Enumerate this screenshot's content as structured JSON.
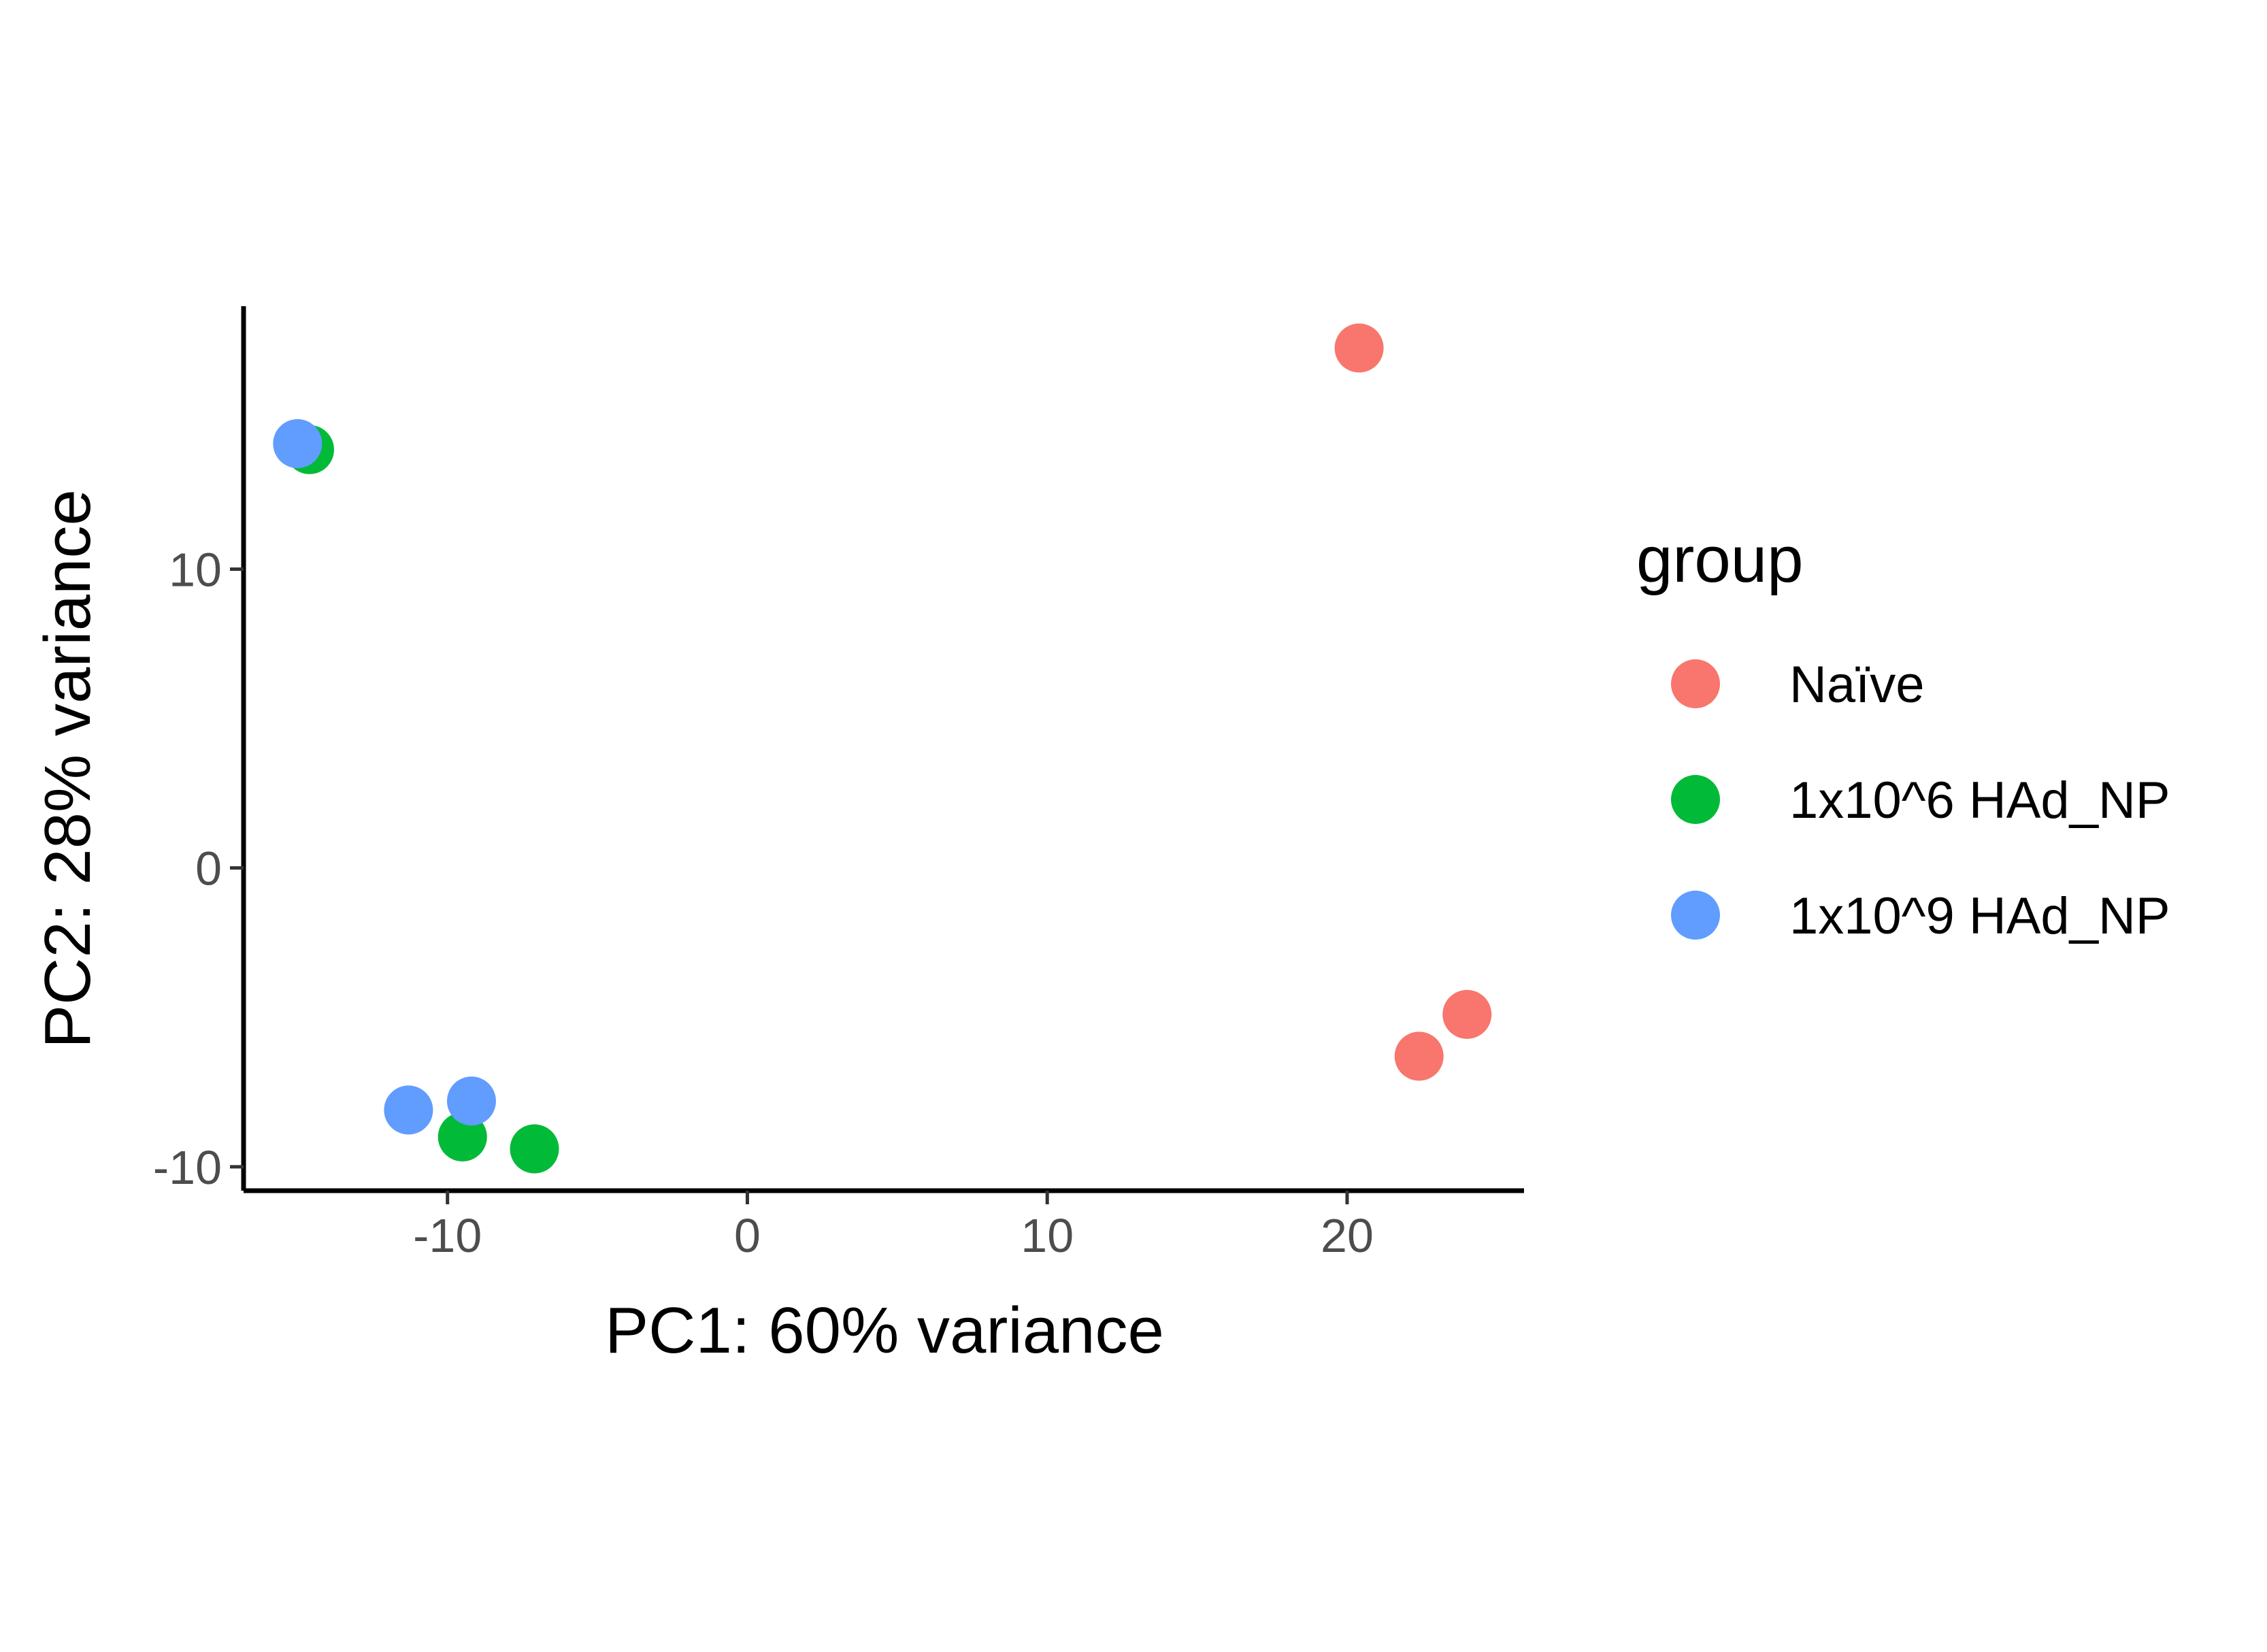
{
  "chart_data": {
    "type": "scatter",
    "xlabel": "PC1: 60% variance",
    "ylabel": "PC2: 28% variance",
    "xlim": [
      -16.8,
      25.9
    ],
    "ylim": [
      -10.8,
      18.8
    ],
    "x_ticks": [
      -10,
      0,
      10,
      20
    ],
    "y_ticks": [
      -10,
      0,
      10
    ],
    "grid": false,
    "legend": {
      "title": "group",
      "placement": "right"
    },
    "series": [
      {
        "name": "Naïve",
        "color": "#F8766D",
        "points": [
          {
            "x": 20.4,
            "y": 17.4
          },
          {
            "x": 24.0,
            "y": -4.9
          },
          {
            "x": 22.4,
            "y": -6.3
          }
        ]
      },
      {
        "name": "1x10^6 HAd_NP",
        "color": "#00BA38",
        "points": [
          {
            "x": -14.6,
            "y": 14.0
          },
          {
            "x": -9.5,
            "y": -9.0
          },
          {
            "x": -7.1,
            "y": -9.4
          }
        ]
      },
      {
        "name": "1x10^9 HAd_NP",
        "color": "#619CFF",
        "points": [
          {
            "x": -15.0,
            "y": 14.2
          },
          {
            "x": -9.2,
            "y": -7.8
          },
          {
            "x": -11.3,
            "y": -8.1
          }
        ]
      }
    ]
  }
}
